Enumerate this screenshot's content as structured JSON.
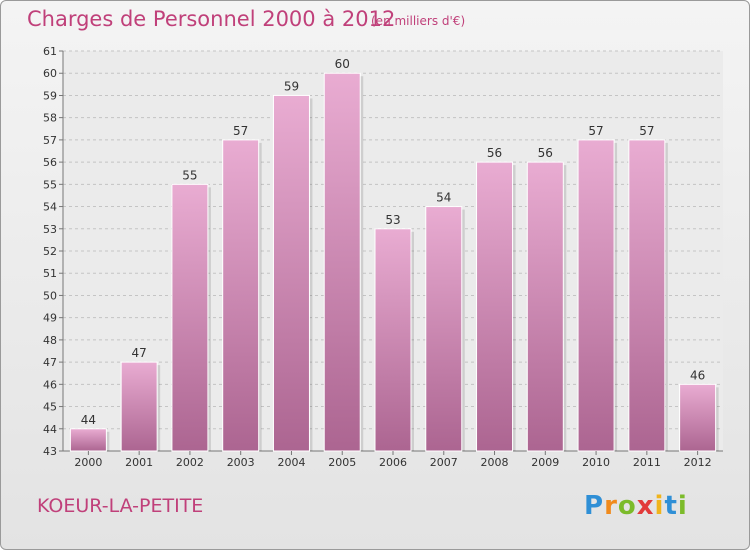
{
  "header": {
    "title": "Charges de Personnel 2000 à 2012",
    "subtitle": "(en milliers d'€)"
  },
  "footer": {
    "commune": "KOEUR-LA-PETITE",
    "logo_letters": [
      {
        "ch": "P",
        "color": "#2f8fd6"
      },
      {
        "ch": "r",
        "color": "#f08a1c"
      },
      {
        "ch": "o",
        "color": "#7cbb2a"
      },
      {
        "ch": "x",
        "color": "#e23a3a"
      },
      {
        "ch": "i",
        "color": "#f0b41c"
      },
      {
        "ch": "t",
        "color": "#2f8fd6"
      },
      {
        "ch": "i",
        "color": "#7cbb2a"
      }
    ]
  },
  "colors": {
    "bar_light": "#e9acd2",
    "bar_dark": "#ac6591",
    "text": "#333333",
    "accent": "#c0407a"
  },
  "chart_data": {
    "type": "bar",
    "categories": [
      "2000",
      "2001",
      "2002",
      "2003",
      "2004",
      "2005",
      "2006",
      "2007",
      "2008",
      "2009",
      "2010",
      "2011",
      "2012"
    ],
    "values": [
      44,
      47,
      55,
      57,
      59,
      60,
      53,
      54,
      56,
      56,
      57,
      57,
      46
    ],
    "ylim": [
      43,
      61
    ],
    "yticks": [
      43,
      44,
      45,
      46,
      47,
      48,
      49,
      50,
      51,
      52,
      53,
      54,
      55,
      56,
      57,
      58,
      59,
      60,
      61
    ],
    "grid": true,
    "data_labels": true
  }
}
